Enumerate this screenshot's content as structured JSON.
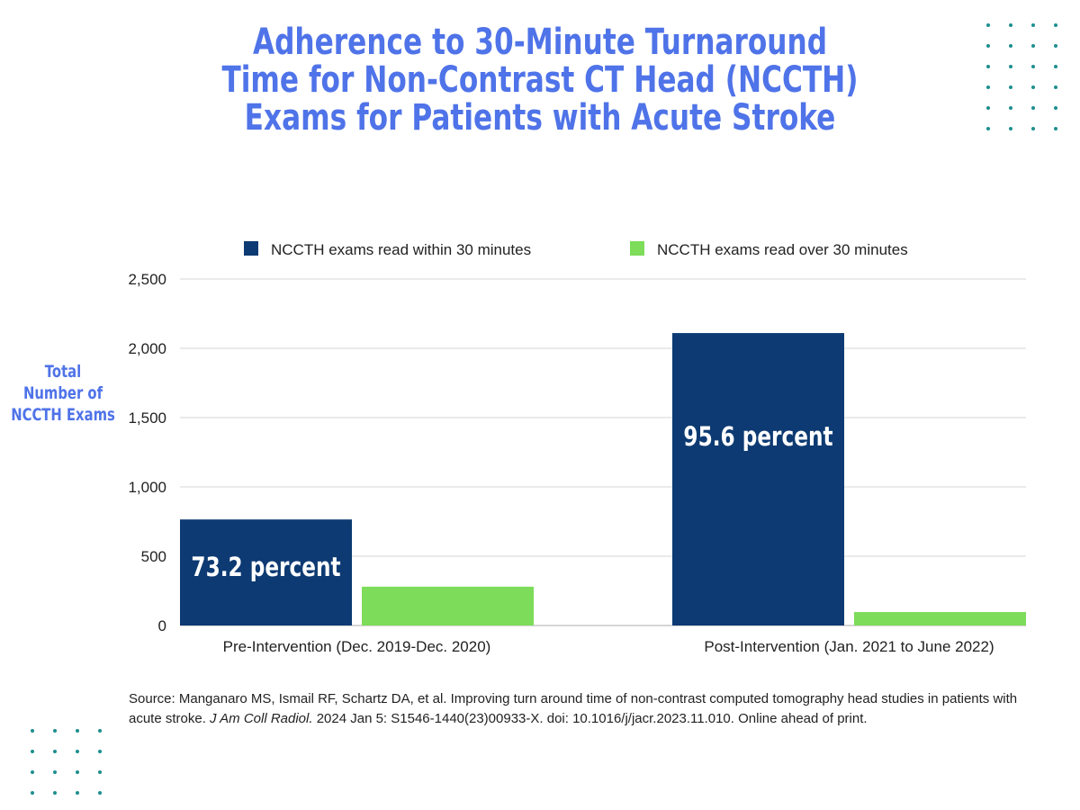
{
  "title": {
    "line1": "Adherence to 30-Minute Turnaround",
    "line2": "Time for Non-Contrast CT Head (NCCTH)",
    "line3": "Exams for Patients with Acute Stroke"
  },
  "colors": {
    "title": "#4f73e8",
    "series_within": "#0d3a72",
    "series_over": "#7ddc5a",
    "dots": "#1d8f8f"
  },
  "chart_data": {
    "type": "bar",
    "categories": [
      "Pre-Intervention (Dec. 2019-Dec. 2020)",
      "Post-Intervention (Jan. 2021 to June 2022)"
    ],
    "series": [
      {
        "name": "NCCTH exams read within 30 minutes",
        "values": [
          765,
          2110
        ],
        "labels": [
          "73.2 percent",
          "95.6 percent"
        ]
      },
      {
        "name": "NCCTH exams read over 30 minutes",
        "values": [
          280,
          97
        ]
      }
    ],
    "ylabel": [
      "Total",
      "Number of",
      "NCCTH Exams"
    ],
    "ylim": [
      0,
      2500
    ],
    "yticks": [
      0,
      500,
      1000,
      1500,
      2000,
      2500
    ],
    "ytick_labels": [
      "0",
      "500",
      "1,000",
      "1,500",
      "2,000",
      "2,500"
    ],
    "grid": true,
    "legend": "top"
  },
  "source": {
    "prefix": "Source: Manganaro MS, Ismail RF, Schartz DA, et al. Improving turn around time of non-contrast computed tomography head studies in patients with acute stroke. ",
    "journal": "J Am Coll Radiol.",
    "suffix": " 2024 Jan 5: S1546-1440(23)00933-X. doi: 10.1016/j/jacr.2023.11.010. Online ahead of print."
  }
}
